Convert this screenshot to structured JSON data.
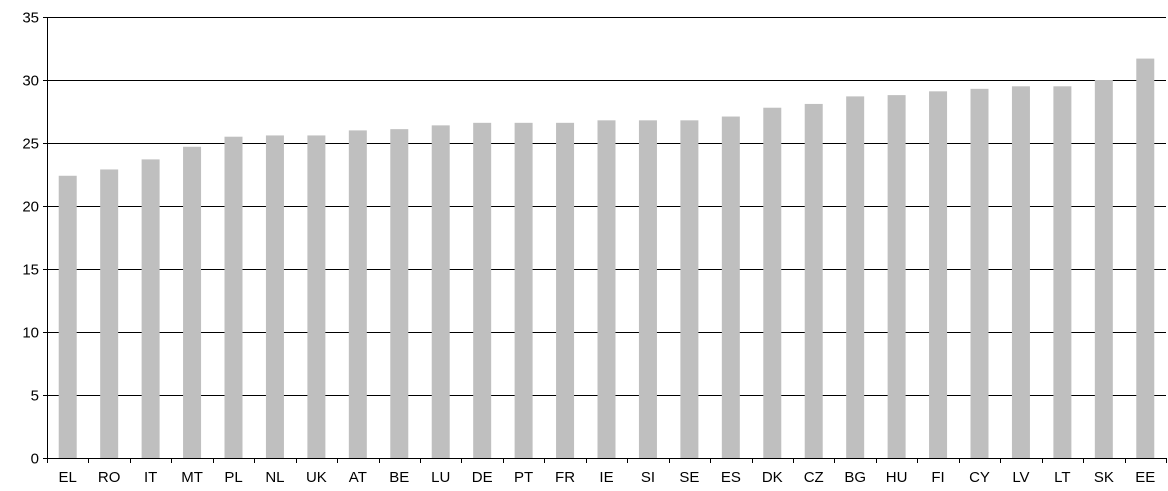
{
  "chart_data": {
    "type": "bar",
    "title": "",
    "xlabel": "",
    "ylabel": "",
    "categories": [
      "EL",
      "RO",
      "IT",
      "MT",
      "PL",
      "NL",
      "UK",
      "AT",
      "BE",
      "LU",
      "DE",
      "PT",
      "FR",
      "IE",
      "SI",
      "SE",
      "ES",
      "DK",
      "CZ",
      "BG",
      "HU",
      "FI",
      "CY",
      "LV",
      "LT",
      "SK",
      "EE"
    ],
    "values": [
      22.4,
      22.9,
      23.7,
      24.7,
      25.5,
      25.6,
      25.6,
      26.0,
      26.1,
      26.4,
      26.6,
      26.6,
      26.6,
      26.8,
      26.8,
      26.8,
      27.1,
      27.8,
      28.1,
      28.7,
      28.8,
      29.1,
      29.3,
      29.5,
      29.5,
      30.0,
      31.7
    ],
    "ylim": [
      0,
      35
    ],
    "yticks": [
      0,
      5,
      10,
      15,
      20,
      25,
      30,
      35
    ],
    "grid": true,
    "legend": "none",
    "colors": {
      "bar": "#bfbfbf",
      "grid": "#000000",
      "axis": "#000000",
      "text": "#000000"
    }
  }
}
